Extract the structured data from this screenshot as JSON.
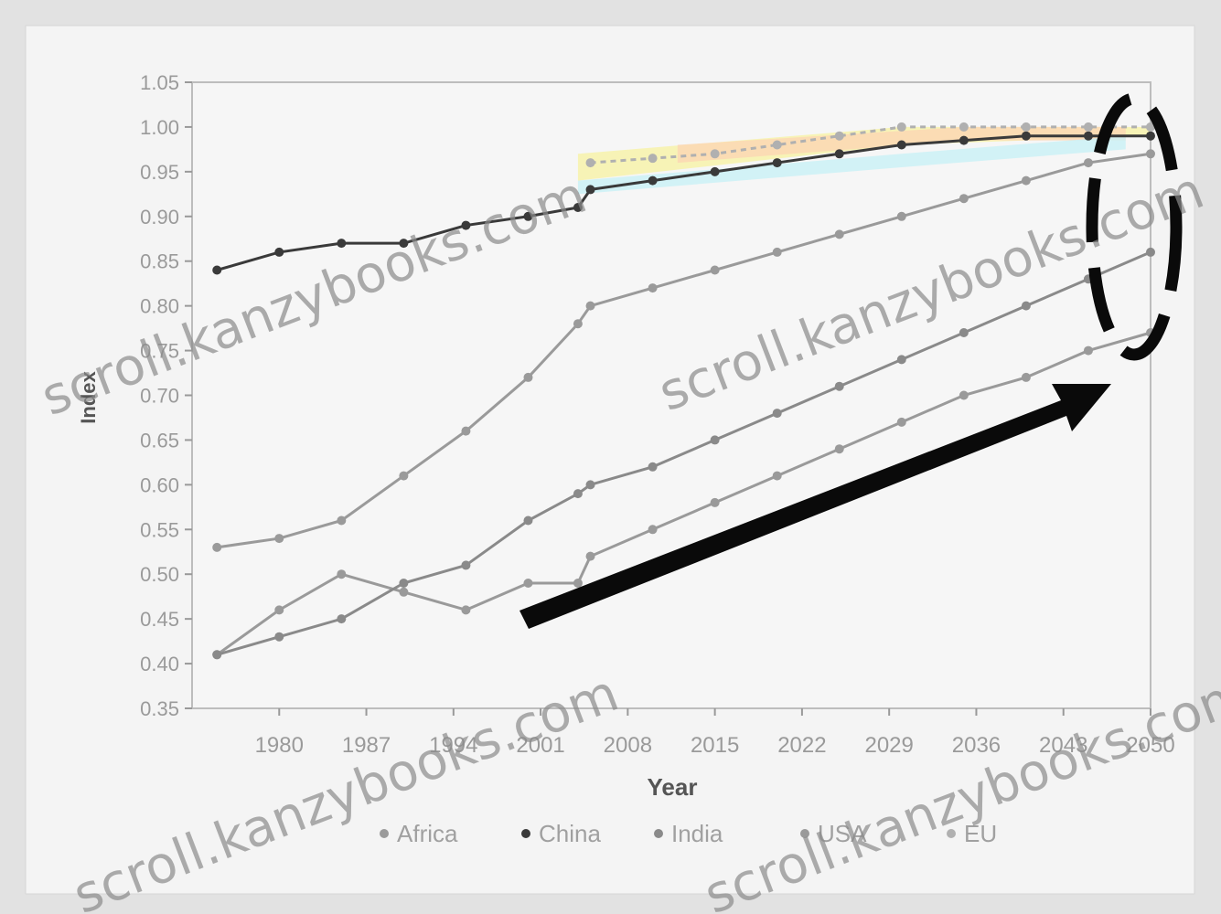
{
  "chart_data": {
    "type": "line",
    "title": "",
    "xlabel": "Year",
    "ylabel": "Index",
    "xlim": [
      1973,
      2050
    ],
    "ylim": [
      0.35,
      1.05
    ],
    "y_ticks": [
      "0.35",
      "0.40",
      "0.45",
      "0.50",
      "0.55",
      "0.60",
      "0.65",
      "0.70",
      "0.75",
      "0.80",
      "0.85",
      "0.90",
      "0.95",
      "1.00",
      "1.05"
    ],
    "x_ticks": [
      "1980",
      "1987",
      "1994",
      "2001",
      "2008",
      "2015",
      "2022",
      "2029",
      "2036",
      "2043",
      "2050"
    ],
    "grid": false,
    "legend_position": "bottom",
    "series": [
      {
        "name": "Africa",
        "color": "#9a9a9a",
        "x": [
          1975,
          1980,
          1985,
          1990,
          1995,
          2000,
          2004,
          2005,
          2010,
          2015,
          2020,
          2025,
          2030,
          2035,
          2040,
          2045,
          2050
        ],
        "y": [
          0.41,
          0.46,
          0.5,
          0.48,
          0.46,
          0.49,
          0.49,
          0.52,
          0.55,
          0.58,
          0.61,
          0.64,
          0.67,
          0.7,
          0.72,
          0.75,
          0.77
        ]
      },
      {
        "name": "China",
        "color": "#3a3a3a",
        "x": [
          1975,
          1980,
          1985,
          1990,
          1995,
          2000,
          2004,
          2005,
          2010,
          2015,
          2020,
          2025,
          2030,
          2035,
          2040,
          2045,
          2050
        ],
        "y": [
          0.84,
          0.86,
          0.87,
          0.87,
          0.89,
          0.9,
          0.91,
          0.93,
          0.94,
          0.95,
          0.96,
          0.97,
          0.98,
          0.985,
          0.99,
          0.99,
          0.99
        ]
      },
      {
        "name": "India",
        "color": "#8a8a8a",
        "x": [
          1975,
          1980,
          1985,
          1990,
          1995,
          2000,
          2004,
          2005,
          2010,
          2015,
          2020,
          2025,
          2030,
          2035,
          2040,
          2045,
          2050
        ],
        "y": [
          0.41,
          0.43,
          0.45,
          0.49,
          0.51,
          0.56,
          0.59,
          0.6,
          0.62,
          0.65,
          0.68,
          0.71,
          0.74,
          0.77,
          0.8,
          0.83,
          0.86
        ]
      },
      {
        "name": "USA",
        "color": "#9a9a9a",
        "x": [
          1975,
          1980,
          1985,
          1990,
          1995,
          2000,
          2004,
          2005,
          2010,
          2015,
          2020,
          2025,
          2030,
          2035,
          2040,
          2045,
          2050
        ],
        "y": [
          0.53,
          0.54,
          0.56,
          0.61,
          0.66,
          0.72,
          0.78,
          0.8,
          0.82,
          0.84,
          0.86,
          0.88,
          0.9,
          0.92,
          0.94,
          0.96,
          0.97
        ]
      },
      {
        "name": "EU",
        "color": "#b0b0b0",
        "x": [
          2005,
          2010,
          2015,
          2020,
          2025,
          2030,
          2035,
          2040,
          2045,
          2050
        ],
        "y": [
          0.96,
          0.965,
          0.97,
          0.98,
          0.99,
          1.0,
          1.0,
          1.0,
          1.0,
          1.0
        ]
      }
    ]
  },
  "watermarks": [
    "scroll.kanzybooks.com",
    "scroll.kanzybooks.com",
    "scroll.kanzybooks.com",
    "scroll.kanzybooks.com"
  ]
}
